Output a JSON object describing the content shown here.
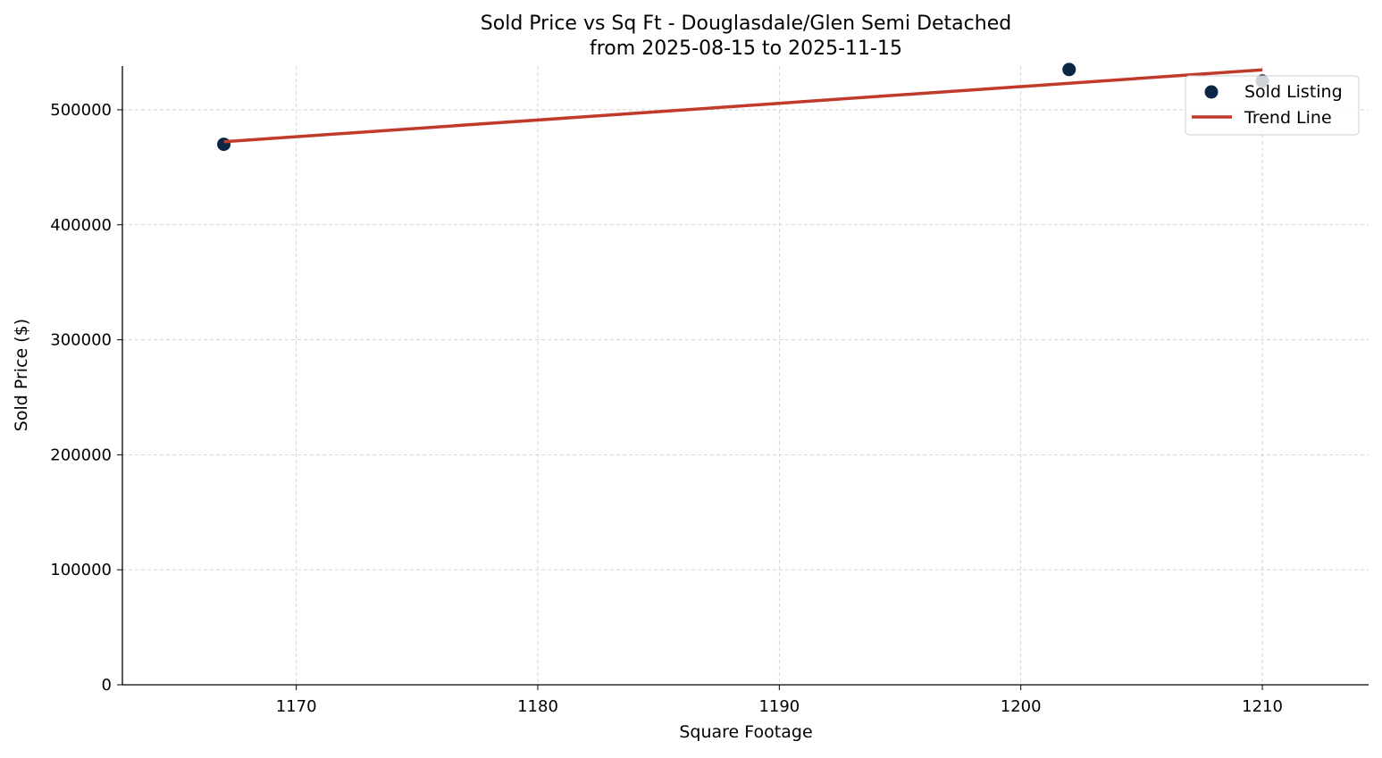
{
  "chart_data": {
    "type": "scatter",
    "title": "Sold Price vs Sq Ft - Douglasdale/Glen Semi Detached",
    "subtitle": "from 2025-08-15 to 2025-11-15",
    "xlabel": "Square Footage",
    "ylabel": "Sold Price ($)",
    "xlim": [
      1162.8,
      1214.4
    ],
    "ylim": [
      0,
      538000
    ],
    "xticks": [
      1170,
      1180,
      1190,
      1200,
      1210
    ],
    "yticks": [
      0,
      100000,
      200000,
      300000,
      400000,
      500000
    ],
    "grid": true,
    "legend_position": "top-right",
    "series": [
      {
        "name": "Sold Listing",
        "kind": "scatter",
        "color": "#0b2545",
        "x": [
          1167,
          1202,
          1210
        ],
        "y": [
          470000,
          535000,
          525000
        ]
      },
      {
        "name": "Trend Line",
        "kind": "line",
        "color": "#c0392b",
        "x": [
          1167,
          1210
        ],
        "y": [
          472200,
          534700
        ]
      }
    ]
  }
}
